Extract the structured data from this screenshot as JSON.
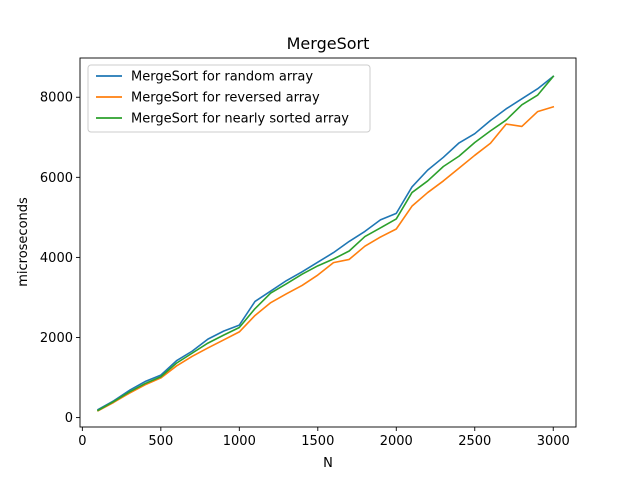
{
  "chart_data": {
    "type": "line",
    "title": "MergeSort",
    "xlabel": "N",
    "ylabel": "microseconds",
    "xlim": [
      -15,
      3145
    ],
    "ylim": [
      -235,
      8980
    ],
    "xticks": [
      0,
      500,
      1000,
      1500,
      2000,
      2500,
      3000
    ],
    "yticks": [
      0,
      2000,
      4000,
      6000,
      8000
    ],
    "grid": false,
    "legend_position": "top-left",
    "x": [
      100,
      200,
      300,
      400,
      500,
      600,
      700,
      800,
      900,
      1000,
      1100,
      1200,
      1300,
      1400,
      1500,
      1600,
      1700,
      1800,
      1900,
      2000,
      2100,
      2200,
      2300,
      2400,
      2500,
      2600,
      2700,
      2800,
      2900,
      3000
    ],
    "series": [
      {
        "name": "MergeSort for random array",
        "color": "#1f77b4",
        "values": [
          200,
          420,
          680,
          900,
          1060,
          1420,
          1660,
          1960,
          2160,
          2310,
          2900,
          3160,
          3420,
          3640,
          3880,
          4120,
          4400,
          4650,
          4940,
          5100,
          5760,
          6180,
          6500,
          6860,
          7090,
          7420,
          7710,
          7960,
          8210,
          8520
        ]
      },
      {
        "name": "MergeSort for reversed array",
        "color": "#ff7f0e",
        "values": [
          170,
          380,
          610,
          820,
          990,
          1290,
          1530,
          1740,
          1940,
          2140,
          2550,
          2870,
          3090,
          3300,
          3560,
          3870,
          3950,
          4280,
          4510,
          4710,
          5280,
          5620,
          5910,
          6230,
          6550,
          6850,
          7330,
          7270,
          7640,
          7760
        ]
      },
      {
        "name": "MergeSort for nearly sorted array",
        "color": "#2ca02c",
        "values": [
          180,
          400,
          640,
          850,
          1020,
          1360,
          1610,
          1860,
          2060,
          2250,
          2720,
          3110,
          3340,
          3580,
          3790,
          3960,
          4160,
          4520,
          4740,
          4960,
          5620,
          5910,
          6270,
          6530,
          6870,
          7160,
          7430,
          7810,
          8050,
          8520
        ]
      }
    ]
  }
}
